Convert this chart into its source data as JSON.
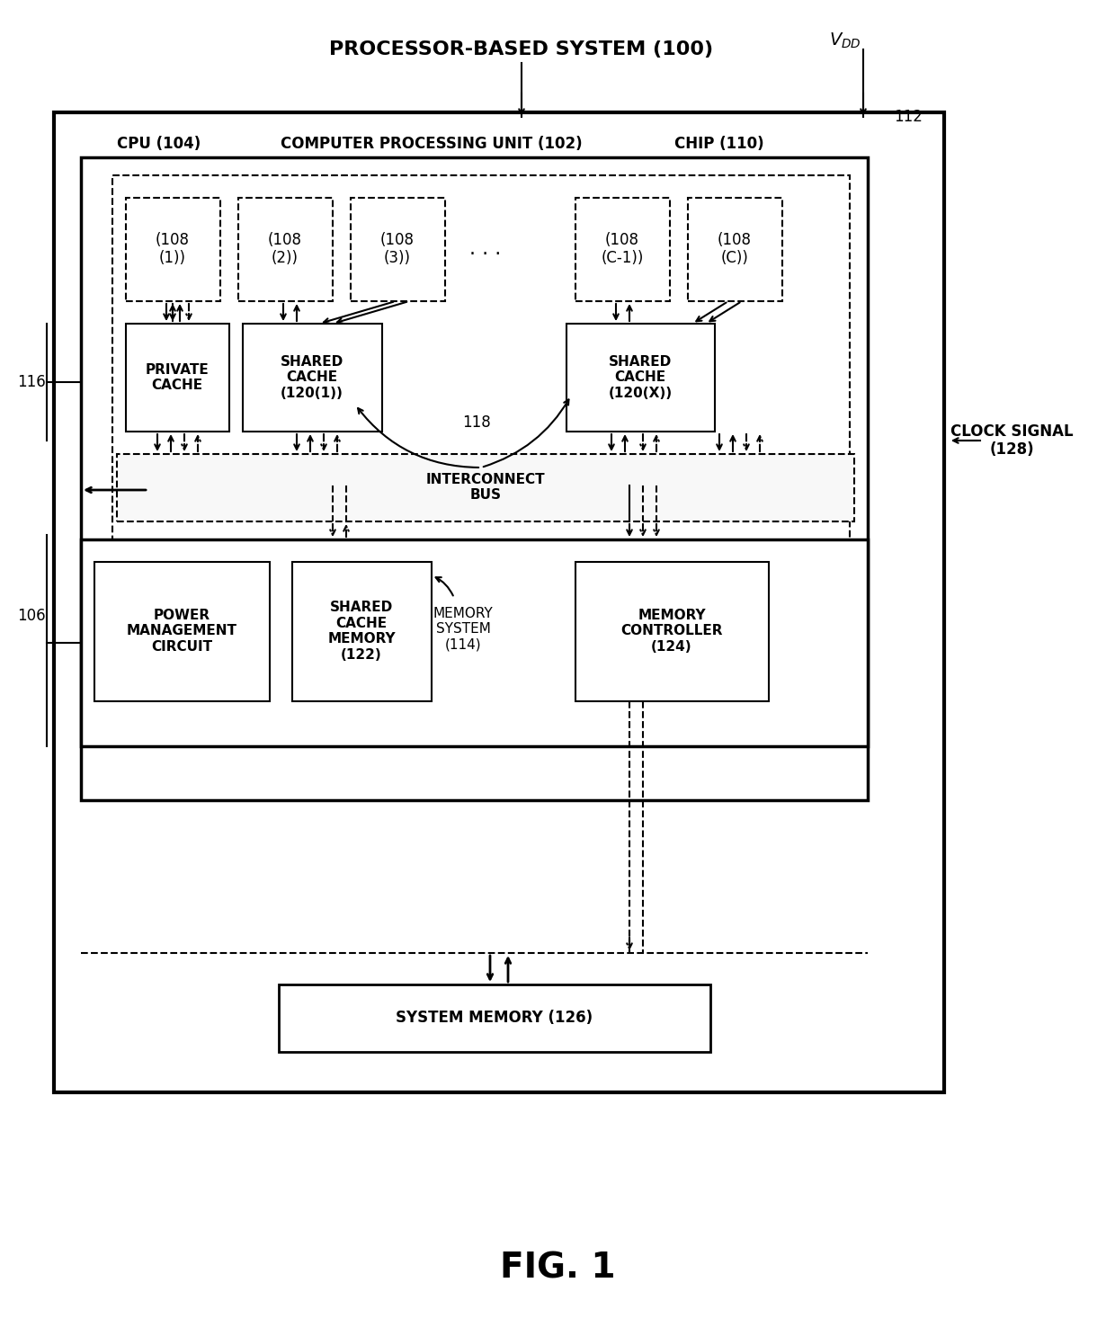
{
  "title": "PROCESSOR-BASED SYSTEM (100)",
  "fig_label": "FIG. 1",
  "bg_color": "#ffffff",
  "cpu_label": "CPU (104)",
  "cpu_unit_label": "COMPUTER PROCESSING UNIT (102)",
  "chip_label": "CHIP (110)",
  "vdd_label": "$V_{DD}$",
  "label_112": "112",
  "clock_signal_label": "CLOCK SIGNAL\n(128)",
  "label_116": "116",
  "label_106": "106",
  "label_118": "118",
  "core_labels": [
    "(108\n(1))",
    "(108\n(2))",
    "(108\n(3))",
    "(108\n(C-1))",
    "(108\n(C))"
  ],
  "dots_label": ". . .",
  "private_cache_label": "PRIVATE\nCACHE",
  "shared_cache1_label": "SHARED\nCACHE\n(120(1))",
  "shared_cache2_label": "SHARED\nCACHE\n(120(X))",
  "interconnect_label": "INTERCONNECT\nBUS",
  "power_mgmt_label": "POWER\nMANAGEMENT\nCIRCUIT",
  "shared_cache_mem_label": "SHARED\nCACHE\nMEMORY\n(122)",
  "memory_system_label": "MEMORY\nSYSTEM\n(114)",
  "memory_ctrl_label": "MEMORY\nCONTROLLER\n(124)",
  "system_memory_label": "SYSTEM MEMORY (126)"
}
